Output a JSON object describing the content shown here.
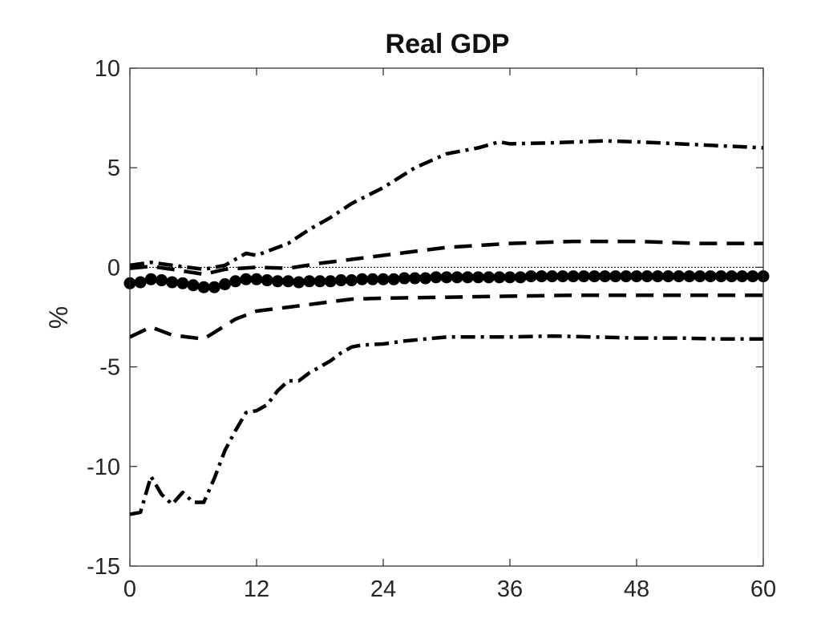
{
  "chart_data": {
    "type": "line",
    "title": "Real GDP",
    "xlabel": "",
    "ylabel": "%",
    "xlim": [
      0,
      60
    ],
    "ylim": [
      -15,
      10
    ],
    "x_ticks": [
      0,
      12,
      24,
      36,
      48,
      60
    ],
    "y_ticks": [
      -15,
      -10,
      -5,
      0,
      5,
      10
    ],
    "grid": false,
    "zero_line": true,
    "series": [
      {
        "style": "solid-dots",
        "x": [
          0,
          1,
          2,
          3,
          4,
          5,
          6,
          7,
          8,
          9,
          10,
          11,
          12,
          13,
          14,
          15,
          16,
          17,
          18,
          19,
          20,
          21,
          22,
          23,
          24,
          25,
          26,
          27,
          28,
          29,
          30,
          31,
          32,
          33,
          34,
          35,
          36,
          37,
          38,
          39,
          40,
          41,
          42,
          43,
          44,
          45,
          46,
          47,
          48,
          49,
          50,
          51,
          52,
          53,
          54,
          55,
          56,
          57,
          58,
          59,
          60
        ],
        "values": [
          -0.8,
          -0.75,
          -0.6,
          -0.65,
          -0.75,
          -0.8,
          -0.9,
          -1.0,
          -1.0,
          -0.85,
          -0.7,
          -0.6,
          -0.6,
          -0.65,
          -0.7,
          -0.7,
          -0.75,
          -0.7,
          -0.7,
          -0.7,
          -0.65,
          -0.65,
          -0.6,
          -0.6,
          -0.6,
          -0.6,
          -0.55,
          -0.55,
          -0.55,
          -0.5,
          -0.5,
          -0.5,
          -0.5,
          -0.5,
          -0.5,
          -0.5,
          -0.5,
          -0.5,
          -0.45,
          -0.45,
          -0.45,
          -0.45,
          -0.45,
          -0.45,
          -0.45,
          -0.45,
          -0.45,
          -0.45,
          -0.45,
          -0.45,
          -0.45,
          -0.45,
          -0.45,
          -0.45,
          -0.45,
          -0.45,
          -0.45,
          -0.45,
          -0.45,
          -0.45,
          -0.45
        ]
      },
      {
        "style": "dashed",
        "x": [
          0,
          2,
          4,
          7,
          10,
          12,
          15,
          18,
          21,
          24,
          30,
          36,
          42,
          48,
          54,
          60
        ],
        "values": [
          -3.5,
          -3.0,
          -3.4,
          -3.6,
          -2.6,
          -2.2,
          -2.0,
          -1.8,
          -1.6,
          -1.55,
          -1.5,
          -1.45,
          -1.4,
          -1.4,
          -1.4,
          -1.4
        ]
      },
      {
        "style": "dashed",
        "x": [
          0,
          2,
          4,
          7,
          9,
          12,
          15,
          18,
          21,
          24,
          27,
          30,
          33,
          36,
          42,
          48,
          54,
          60
        ],
        "values": [
          -0.05,
          0.05,
          -0.1,
          -0.35,
          -0.1,
          0.0,
          -0.05,
          0.2,
          0.4,
          0.6,
          0.8,
          1.0,
          1.1,
          1.2,
          1.3,
          1.3,
          1.2,
          1.2
        ]
      },
      {
        "style": "dash-dot",
        "x": [
          0,
          1,
          2,
          3,
          4,
          5,
          6,
          7,
          8,
          9,
          10,
          11,
          12,
          13,
          14,
          15,
          16,
          17,
          18,
          19,
          20,
          21,
          22,
          24,
          26,
          28,
          30,
          32,
          34,
          36,
          40,
          44,
          48,
          52,
          56,
          60
        ],
        "values": [
          -12.4,
          -12.3,
          -10.5,
          -11.4,
          -11.9,
          -11.3,
          -11.8,
          -11.8,
          -10.6,
          -9.2,
          -8.2,
          -7.3,
          -7.2,
          -6.9,
          -6.2,
          -5.7,
          -5.7,
          -5.3,
          -5.0,
          -4.7,
          -4.3,
          -4.0,
          -3.9,
          -3.85,
          -3.7,
          -3.6,
          -3.5,
          -3.5,
          -3.5,
          -3.5,
          -3.45,
          -3.5,
          -3.55,
          -3.55,
          -3.6,
          -3.6
        ]
      },
      {
        "style": "dash-dot",
        "x": [
          0,
          2,
          4,
          7,
          9,
          11,
          12,
          13,
          15,
          17,
          19,
          21,
          24,
          27,
          30,
          33,
          35,
          36,
          40,
          45,
          48,
          54,
          60
        ],
        "values": [
          0.1,
          0.25,
          0.1,
          -0.1,
          0.1,
          0.7,
          0.6,
          0.8,
          1.2,
          1.9,
          2.5,
          3.2,
          4.0,
          5.0,
          5.7,
          6.0,
          6.3,
          6.2,
          6.25,
          6.35,
          6.3,
          6.15,
          6.0
        ]
      }
    ]
  }
}
